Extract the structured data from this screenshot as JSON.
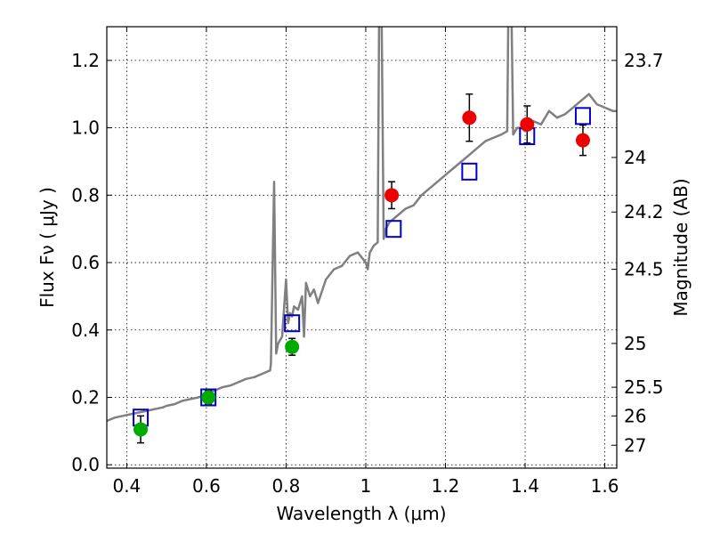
{
  "chart_data": {
    "type": "scatter",
    "xlabel": "Wavelength  λ (μm)",
    "ylabel": "Flux  Fν  ( μJy )",
    "ylabel_right": "Magnitude (AB)",
    "xlim": [
      0.35,
      1.63
    ],
    "ylim": [
      -0.01,
      1.3
    ],
    "x_ticks": [
      0.4,
      0.6,
      0.8,
      1.0,
      1.2,
      1.4,
      1.6
    ],
    "x_tick_labels": [
      "0.4",
      "0.6",
      "0.8",
      "1",
      "1.2",
      "1.4",
      "1.6"
    ],
    "y_ticks": [
      0.0,
      0.2,
      0.4,
      0.6,
      0.8,
      1.0,
      1.2
    ],
    "y_tick_labels": [
      "0.0",
      "0.2",
      "0.4",
      "0.6",
      "0.8",
      "1.0",
      "1.2"
    ],
    "right_ticks": [
      {
        "flux": 1.2,
        "label": "23.7"
      },
      {
        "flux": 0.912,
        "label": "24"
      },
      {
        "flux": 0.75,
        "label": "24.2"
      },
      {
        "flux": 0.58,
        "label": "24.5"
      },
      {
        "flux": 0.36,
        "label": "25"
      },
      {
        "flux": 0.23,
        "label": "25.5"
      },
      {
        "flux": 0.145,
        "label": "26"
      },
      {
        "flux": 0.058,
        "label": "27"
      }
    ],
    "grid": true,
    "series": [
      {
        "kind": "line",
        "color": "#808080",
        "x": [
          0.35,
          0.37,
          0.39,
          0.41,
          0.43,
          0.45,
          0.47,
          0.49,
          0.5,
          0.52,
          0.54,
          0.56,
          0.58,
          0.6,
          0.62,
          0.64,
          0.66,
          0.68,
          0.7,
          0.72,
          0.74,
          0.76,
          0.762,
          0.77,
          0.775,
          0.78,
          0.79,
          0.8,
          0.805,
          0.81,
          0.815,
          0.82,
          0.83,
          0.84,
          0.845,
          0.85,
          0.86,
          0.87,
          0.88,
          0.9,
          0.92,
          0.94,
          0.96,
          0.98,
          1.0,
          1.005,
          1.01,
          1.02,
          1.03,
          1.035,
          1.04,
          1.045,
          1.05,
          1.06,
          1.08,
          1.1,
          1.12,
          1.14,
          1.16,
          1.18,
          1.2,
          1.22,
          1.24,
          1.26,
          1.28,
          1.3,
          1.32,
          1.34,
          1.355,
          1.36,
          1.365,
          1.37,
          1.38,
          1.39,
          1.4,
          1.42,
          1.44,
          1.46,
          1.48,
          1.5,
          1.52,
          1.54,
          1.56,
          1.58,
          1.6,
          1.62,
          1.63
        ],
        "y": [
          0.13,
          0.14,
          0.145,
          0.15,
          0.155,
          0.16,
          0.165,
          0.17,
          0.175,
          0.18,
          0.19,
          0.195,
          0.2,
          0.21,
          0.22,
          0.23,
          0.235,
          0.245,
          0.255,
          0.26,
          0.27,
          0.28,
          0.3,
          0.84,
          0.33,
          0.36,
          0.38,
          0.55,
          0.42,
          0.45,
          0.44,
          0.47,
          0.46,
          0.5,
          0.38,
          0.54,
          0.5,
          0.52,
          0.48,
          0.55,
          0.58,
          0.59,
          0.62,
          0.63,
          0.6,
          0.58,
          0.63,
          0.65,
          0.66,
          1.6,
          1.3,
          0.67,
          0.7,
          0.72,
          0.74,
          0.76,
          0.77,
          0.8,
          0.82,
          0.84,
          0.86,
          0.88,
          0.9,
          0.92,
          0.94,
          0.96,
          0.97,
          0.98,
          0.99,
          1.6,
          1.4,
          0.98,
          1.0,
          1.0,
          0.99,
          1.02,
          1.01,
          1.05,
          1.03,
          1.04,
          1.06,
          1.08,
          1.1,
          1.07,
          1.06,
          1.05,
          1.05
        ]
      },
      {
        "kind": "model-points",
        "color": "#0000cc",
        "x": [
          0.435,
          0.605,
          0.815,
          1.07,
          1.26,
          1.405,
          1.545
        ],
        "y": [
          0.14,
          0.2,
          0.42,
          0.7,
          0.87,
          0.975,
          1.035
        ]
      },
      {
        "kind": "data-points",
        "color": "#00aa00",
        "x": [
          0.435,
          0.605,
          0.815
        ],
        "y": [
          0.105,
          0.2,
          0.35
        ],
        "yerr": [
          0.04,
          0.02,
          0.025
        ]
      },
      {
        "kind": "data-points",
        "color": "#ee0000",
        "x": [
          1.065,
          1.26,
          1.405,
          1.545
        ],
        "y": [
          0.8,
          1.03,
          1.01,
          0.963
        ],
        "yerr": [
          0.04,
          0.07,
          0.055,
          0.045
        ]
      }
    ]
  }
}
